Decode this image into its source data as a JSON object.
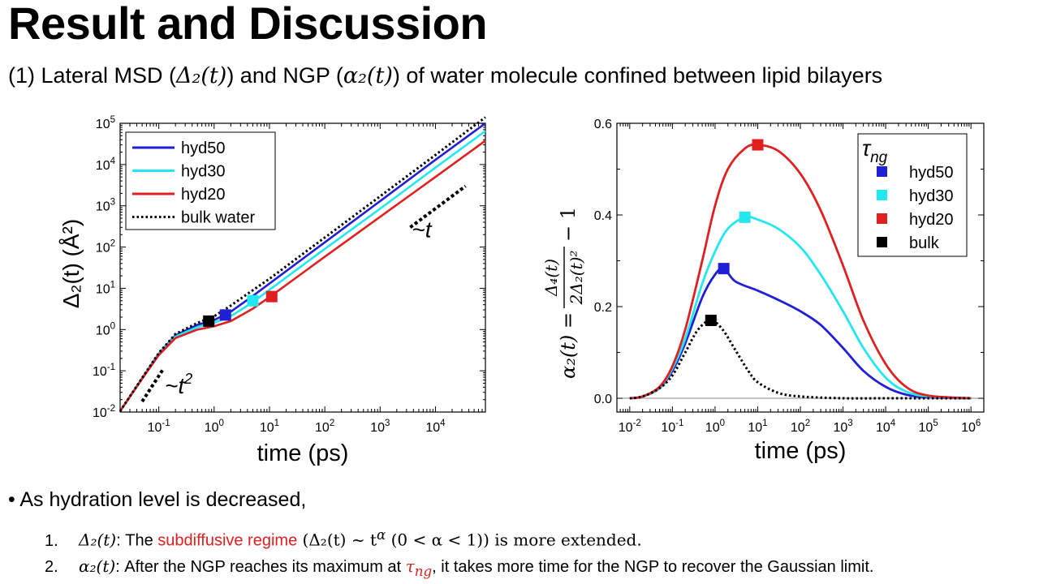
{
  "slide": {
    "title": "Result and Discussion",
    "subtitle": {
      "prefix": "(1) Lateral MSD (",
      "msd_symbol": "Δ₂(t)",
      "mid": ") and NGP (",
      "ngp_symbol": "α₂(t)",
      "suffix": ") of water molecule confined between lipid bilayers"
    },
    "bullet": "As hydration level is decreased,",
    "items": [
      {
        "num": "1.",
        "symbol": "Δ₂(t)",
        "text_a": ": The ",
        "highlight": "subdiffusive regime",
        "text_b": " (Δ₂(t) ~ t",
        "sup": "α",
        "text_c": " (0 < α < 1)) is more extended."
      },
      {
        "num": "2.",
        "symbol": "α₂(t)",
        "text_a": ": After the NGP reaches its maximum at ",
        "highlight": "τ",
        "highlight_sub": "ng",
        "text_b": ", it takes more time for the NGP to recover the Gaussian limit."
      }
    ],
    "accent_color": "#e02020"
  },
  "chart_data": [
    {
      "type": "line",
      "xscale": "log",
      "yscale": "log",
      "xlabel": "time (ps)",
      "ylabel": "Δ₂(t) (Å²)",
      "xlim": [
        0.02,
        80000
      ],
      "ylim": [
        0.01,
        100000
      ],
      "xticks": [
        {
          "value": 0.1,
          "base": "10",
          "exp": "-1"
        },
        {
          "value": 1,
          "base": "10",
          "exp": "0"
        },
        {
          "value": 10,
          "base": "10",
          "exp": "1"
        },
        {
          "value": 100,
          "base": "10",
          "exp": "2"
        },
        {
          "value": 1000,
          "base": "10",
          "exp": "3"
        },
        {
          "value": 10000,
          "base": "10",
          "exp": "4"
        }
      ],
      "yticks": [
        {
          "value": 0.01,
          "base": "10",
          "exp": "-2"
        },
        {
          "value": 0.1,
          "base": "10",
          "exp": "-1"
        },
        {
          "value": 1,
          "base": "10",
          "exp": "0"
        },
        {
          "value": 10,
          "base": "10",
          "exp": "1"
        },
        {
          "value": 100,
          "base": "10",
          "exp": "2"
        },
        {
          "value": 1000,
          "base": "10",
          "exp": "3"
        },
        {
          "value": 10000,
          "base": "10",
          "exp": "4"
        },
        {
          "value": 100000,
          "base": "10",
          "exp": "5"
        }
      ],
      "legend_position": "top-left",
      "series": [
        {
          "name": "hyd50",
          "color": "#1f1fd6",
          "dash": false,
          "x": [
            0.02,
            0.05,
            0.1,
            0.2,
            0.5,
            1,
            2,
            5,
            10,
            100,
            1000,
            10000,
            80000
          ],
          "y": [
            0.0105,
            0.066,
            0.26,
            0.72,
            1.3,
            1.7,
            2.7,
            6.5,
            13,
            130,
            1300,
            13000,
            100000
          ]
        },
        {
          "name": "hyd30",
          "color": "#22e6f0",
          "dash": false,
          "x": [
            0.02,
            0.05,
            0.1,
            0.2,
            0.5,
            1,
            2,
            5,
            10,
            100,
            1000,
            10000,
            80000
          ],
          "y": [
            0.0105,
            0.065,
            0.25,
            0.68,
            1.15,
            1.45,
            2.1,
            4.6,
            9.2,
            90,
            850,
            8400,
            65000
          ]
        },
        {
          "name": "hyd20",
          "color": "#e02020",
          "dash": false,
          "x": [
            0.02,
            0.05,
            0.1,
            0.2,
            0.5,
            1,
            2,
            5,
            10,
            100,
            1000,
            10000,
            80000
          ],
          "y": [
            0.0105,
            0.064,
            0.24,
            0.62,
            1.0,
            1.2,
            1.6,
            3.2,
            6.1,
            58,
            540,
            5000,
            38000
          ]
        },
        {
          "name": "bulk water",
          "color": "#000000",
          "dash": true,
          "x": [
            0.02,
            0.05,
            0.1,
            0.2,
            0.5,
            1,
            2,
            5,
            10,
            100,
            1000,
            10000,
            80000
          ],
          "y": [
            0.0105,
            0.067,
            0.27,
            0.78,
            1.45,
            2.1,
            3.8,
            9,
            17,
            170,
            1700,
            17000,
            140000
          ]
        }
      ],
      "markers": [
        {
          "name": "bulk water",
          "x": 0.8,
          "y": 1.6,
          "color": "#000000"
        },
        {
          "name": "hyd50",
          "x": 1.6,
          "y": 2.25,
          "color": "#1f1fd6"
        },
        {
          "name": "hyd30",
          "x": 5,
          "y": 5.0,
          "color": "#22e6f0"
        },
        {
          "name": "hyd20",
          "x": 11,
          "y": 6.3,
          "color": "#e02020"
        }
      ],
      "guides": [
        {
          "label": "~t",
          "slope": 1,
          "x": [
            3500,
            35000
          ],
          "y": [
            300,
            3000
          ]
        },
        {
          "label": "~t",
          "label_sup": "2",
          "slope": 2,
          "x": [
            0.05,
            0.12
          ],
          "y": [
            0.018,
            0.11
          ]
        }
      ]
    },
    {
      "type": "line",
      "xscale": "log",
      "yscale": "linear",
      "xlabel": "time (ps)",
      "ylabel": "α₂(t) = Δ₄(t) / 2Δ₂(t)² − 1",
      "xlim": [
        0.005,
        2000000
      ],
      "ylim": [
        -0.03,
        0.6
      ],
      "xticks": [
        {
          "value": 0.01,
          "base": "10",
          "exp": "-2"
        },
        {
          "value": 0.1,
          "base": "10",
          "exp": "-1"
        },
        {
          "value": 1,
          "base": "10",
          "exp": "0"
        },
        {
          "value": 10,
          "base": "10",
          "exp": "1"
        },
        {
          "value": 100,
          "base": "10",
          "exp": "2"
        },
        {
          "value": 1000,
          "base": "10",
          "exp": "3"
        },
        {
          "value": 10000,
          "base": "10",
          "exp": "4"
        },
        {
          "value": 100000,
          "base": "10",
          "exp": "5"
        },
        {
          "value": 1000000,
          "base": "10",
          "exp": "6"
        }
      ],
      "yticks": [
        {
          "value": 0.0,
          "label": "0.0"
        },
        {
          "value": 0.2,
          "label": "0.2"
        },
        {
          "value": 0.4,
          "label": "0.4"
        },
        {
          "value": 0.6,
          "label": "0.6"
        }
      ],
      "legend_title": "τ",
      "legend_title_sub": "ng",
      "legend_position": "top-right",
      "series": [
        {
          "name": "hyd50",
          "color": "#1f1fd6",
          "dash": false,
          "x": [
            0.01,
            0.02,
            0.05,
            0.1,
            0.2,
            0.5,
            1,
            1.6,
            3,
            10,
            30,
            100,
            300,
            1000,
            3000,
            10000,
            30000,
            100000,
            1000000
          ],
          "y": [
            0,
            0.004,
            0.022,
            0.06,
            0.12,
            0.22,
            0.27,
            0.283,
            0.255,
            0.235,
            0.215,
            0.19,
            0.16,
            0.11,
            0.06,
            0.025,
            0.008,
            0.002,
            0
          ]
        },
        {
          "name": "hyd30",
          "color": "#22e6f0",
          "dash": false,
          "x": [
            0.01,
            0.02,
            0.05,
            0.1,
            0.2,
            0.5,
            1,
            2,
            5,
            10,
            30,
            100,
            300,
            1000,
            3000,
            10000,
            30000,
            100000,
            1000000
          ],
          "y": [
            0,
            0.004,
            0.023,
            0.065,
            0.13,
            0.25,
            0.32,
            0.37,
            0.395,
            0.39,
            0.37,
            0.33,
            0.27,
            0.19,
            0.11,
            0.045,
            0.015,
            0.004,
            0
          ]
        },
        {
          "name": "hyd20",
          "color": "#e02020",
          "dash": false,
          "x": [
            0.01,
            0.02,
            0.05,
            0.1,
            0.2,
            0.5,
            1,
            2,
            5,
            10,
            30,
            100,
            300,
            1000,
            3000,
            10000,
            30000,
            100000,
            1000000
          ],
          "y": [
            0,
            0.004,
            0.025,
            0.07,
            0.15,
            0.3,
            0.42,
            0.5,
            0.545,
            0.553,
            0.54,
            0.49,
            0.41,
            0.29,
            0.17,
            0.075,
            0.025,
            0.006,
            0
          ]
        },
        {
          "name": "bulk",
          "color": "#000000",
          "dash": true,
          "x": [
            0.01,
            0.02,
            0.05,
            0.1,
            0.2,
            0.4,
            0.8,
            1.5,
            3,
            6,
            10,
            30,
            100,
            1000,
            10000,
            100000,
            1000000
          ],
          "y": [
            0,
            0.004,
            0.022,
            0.05,
            0.1,
            0.15,
            0.17,
            0.15,
            0.105,
            0.06,
            0.035,
            0.012,
            0.004,
            0,
            0,
            0,
            0
          ]
        }
      ],
      "markers": [
        {
          "name": "bulk",
          "x": 0.8,
          "y": 0.17,
          "color": "#000000"
        },
        {
          "name": "hyd50",
          "x": 1.6,
          "y": 0.283,
          "color": "#1f1fd6"
        },
        {
          "name": "hyd30",
          "x": 5,
          "y": 0.395,
          "color": "#22e6f0"
        },
        {
          "name": "hyd20",
          "x": 10,
          "y": 0.553,
          "color": "#e02020"
        }
      ]
    }
  ]
}
